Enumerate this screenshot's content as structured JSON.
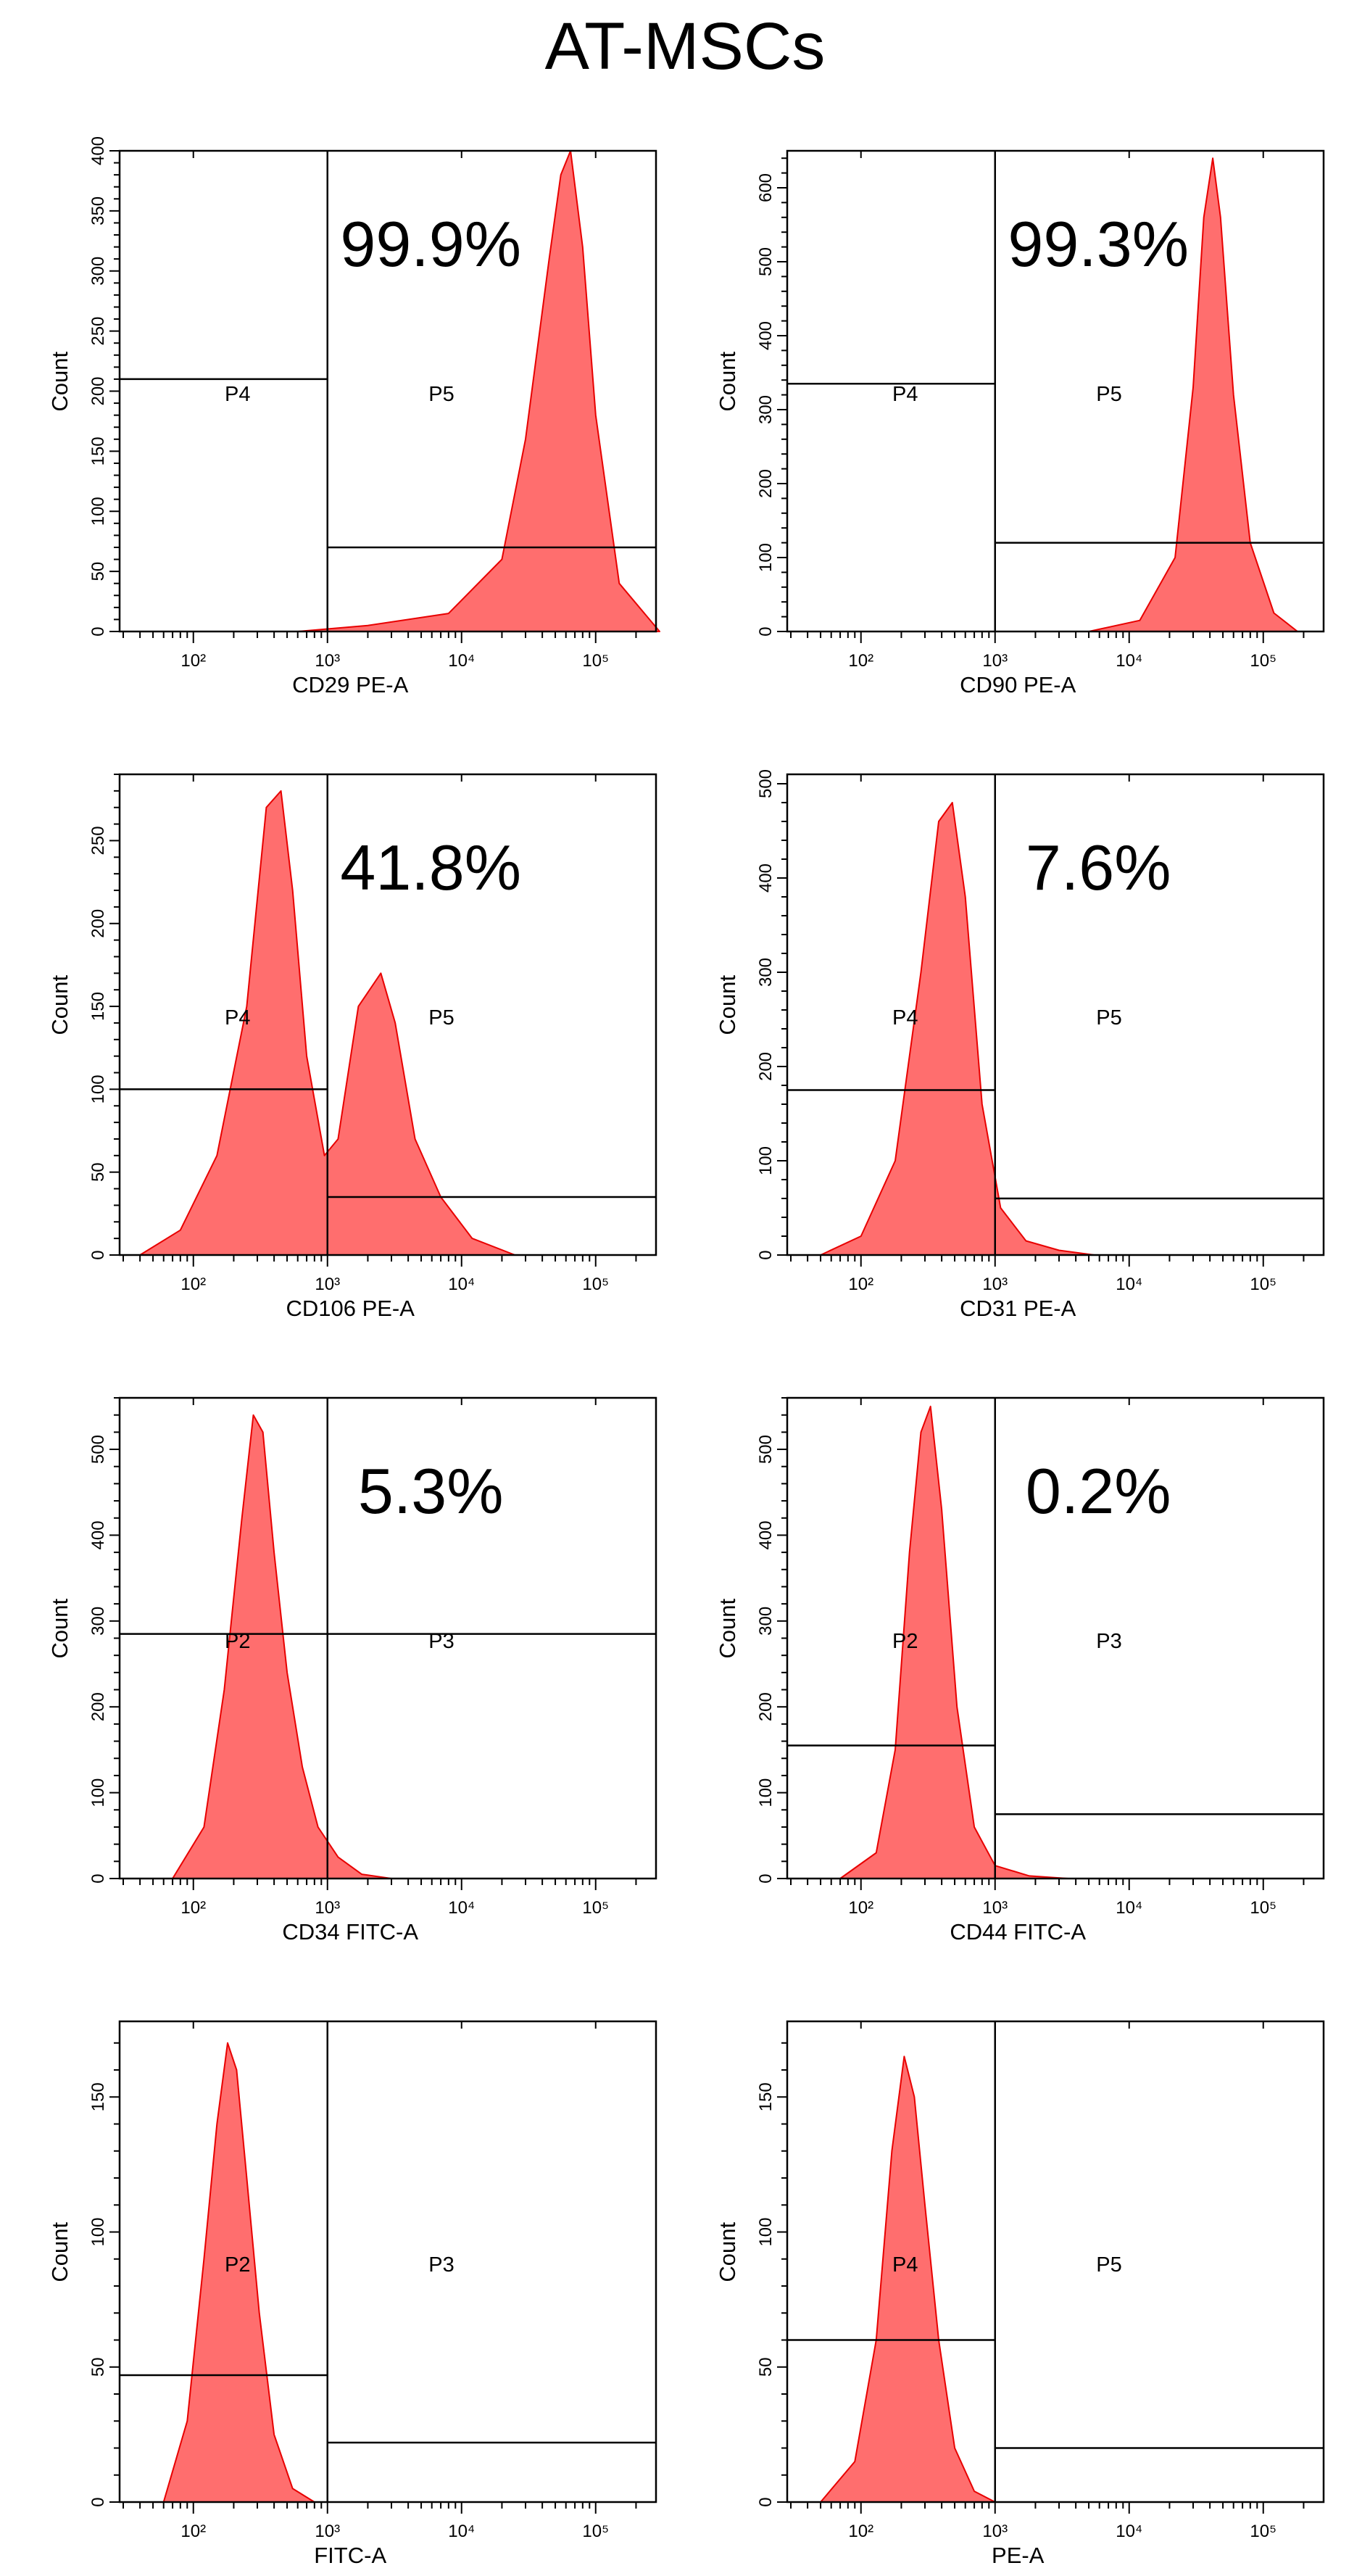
{
  "title": "AT-MSCs",
  "colors": {
    "histogram_fill": "#ff6e6e",
    "histogram_edge": "#e80000",
    "lines": "#000000"
  },
  "chart_data": [
    {
      "type": "area",
      "xlabel": "CD29 PE-A",
      "ylabel": "Count",
      "xscale": "log",
      "xticks": [
        "10²",
        "10³",
        "10⁴",
        "10⁵"
      ],
      "ylim": [
        0,
        400
      ],
      "yticks": [
        0,
        50,
        100,
        150,
        200,
        250,
        300,
        350,
        400
      ],
      "percent": "99.9%",
      "histogram": {
        "x": [
          600,
          2000,
          8000,
          20000,
          30000,
          45000,
          55000,
          65000,
          80000,
          100000,
          150000,
          300000
        ],
        "y": [
          0,
          5,
          15,
          60,
          160,
          310,
          380,
          400,
          320,
          180,
          40,
          0
        ]
      },
      "gates": [
        {
          "label": "P4",
          "x_range": [
            "min",
            1000
          ],
          "count": 210
        },
        {
          "label": "P5",
          "x_range": [
            1000,
            "max"
          ],
          "count": 70
        }
      ]
    },
    {
      "type": "area",
      "xlabel": "CD90 PE-A",
      "ylabel": "Count",
      "xscale": "log",
      "xticks": [
        "10²",
        "10³",
        "10⁴",
        "10⁵"
      ],
      "ylim": [
        0,
        650
      ],
      "yticks": [
        0,
        100,
        200,
        300,
        400,
        500,
        600
      ],
      "percent": "99.3%",
      "histogram": {
        "x": [
          5000,
          12000,
          22000,
          30000,
          36000,
          42000,
          48000,
          60000,
          80000,
          120000,
          180000
        ],
        "y": [
          0,
          15,
          100,
          330,
          560,
          640,
          560,
          320,
          120,
          25,
          0
        ]
      },
      "gates": [
        {
          "label": "P4",
          "x_range": [
            "min",
            1000
          ],
          "count": 335
        },
        {
          "label": "P5",
          "x_range": [
            1000,
            "max"
          ],
          "count": 120
        }
      ]
    },
    {
      "type": "area",
      "xlabel": "CD106 PE-A",
      "ylabel": "Count",
      "xscale": "log",
      "xticks": [
        "10²",
        "10³",
        "10⁴",
        "10⁵"
      ],
      "ylim": [
        0,
        290
      ],
      "yticks": [
        0,
        50,
        100,
        150,
        200,
        250
      ],
      "percent": "41.8%",
      "histogram": {
        "x": [
          40,
          80,
          150,
          250,
          350,
          450,
          550,
          700,
          950,
          1200,
          1700,
          2500,
          3200,
          4500,
          7000,
          12000,
          25000
        ],
        "y": [
          0,
          15,
          60,
          150,
          270,
          280,
          220,
          120,
          60,
          70,
          150,
          170,
          140,
          70,
          35,
          10,
          0
        ]
      },
      "gates": [
        {
          "label": "P4",
          "x_range": [
            "min",
            1000
          ],
          "count": 100
        },
        {
          "label": "P5",
          "x_range": [
            1000,
            "max"
          ],
          "count": 35
        }
      ]
    },
    {
      "type": "area",
      "xlabel": "CD31 PE-A",
      "ylabel": "Count",
      "xscale": "log",
      "xticks": [
        "10²",
        "10³",
        "10⁴",
        "10⁵"
      ],
      "ylim": [
        0,
        510
      ],
      "yticks": [
        0,
        100,
        200,
        300,
        400,
        500
      ],
      "percent": "7.6%",
      "histogram": {
        "x": [
          50,
          100,
          180,
          280,
          380,
          480,
          600,
          800,
          1100,
          1700,
          3000,
          5500
        ],
        "y": [
          0,
          20,
          100,
          300,
          460,
          480,
          380,
          160,
          50,
          15,
          5,
          0
        ]
      },
      "gates": [
        {
          "label": "P4",
          "x_range": [
            "min",
            1000
          ],
          "count": 175
        },
        {
          "label": "P5",
          "x_range": [
            1000,
            "max"
          ],
          "count": 60
        }
      ]
    },
    {
      "type": "area",
      "xlabel": "CD34 FITC-A",
      "ylabel": "Count",
      "xscale": "log",
      "xticks": [
        "10²",
        "10³",
        "10⁴",
        "10⁵"
      ],
      "ylim": [
        0,
        560
      ],
      "yticks": [
        0,
        100,
        200,
        300,
        400,
        500
      ],
      "percent": "5.3%",
      "histogram": {
        "x": [
          70,
          120,
          170,
          230,
          280,
          330,
          400,
          500,
          650,
          850,
          1200,
          1800,
          3000
        ],
        "y": [
          0,
          60,
          220,
          420,
          540,
          520,
          380,
          240,
          130,
          60,
          25,
          5,
          0
        ]
      },
      "gates": [
        {
          "label": "P2",
          "x_range": [
            "min",
            1000
          ],
          "count": 285
        },
        {
          "label": "P3",
          "x_range": [
            1000,
            "max"
          ],
          "count": 285
        }
      ]
    },
    {
      "type": "area",
      "xlabel": "CD44 FITC-A",
      "ylabel": "Count",
      "xscale": "log",
      "xticks": [
        "10²",
        "10³",
        "10⁴",
        "10⁵"
      ],
      "ylim": [
        0,
        560
      ],
      "yticks": [
        0,
        100,
        200,
        300,
        400,
        500
      ],
      "percent": "0.2%",
      "histogram": {
        "x": [
          70,
          130,
          180,
          230,
          280,
          330,
          400,
          520,
          700,
          1000,
          1800,
          3500
        ],
        "y": [
          0,
          30,
          150,
          380,
          520,
          550,
          430,
          200,
          60,
          15,
          3,
          0
        ]
      },
      "gates": [
        {
          "label": "P2",
          "x_range": [
            "min",
            1000
          ],
          "count": 155
        },
        {
          "label": "P3",
          "x_range": [
            1000,
            "max"
          ],
          "count": 75
        }
      ]
    },
    {
      "type": "area",
      "xlabel": "FITC-A",
      "ylabel": "Count",
      "xscale": "log",
      "xticks": [
        "10²",
        "10³",
        "10⁴",
        "10⁵"
      ],
      "ylim": [
        0,
        178
      ],
      "yticks": [
        0,
        50,
        100,
        150
      ],
      "percent": "",
      "histogram": {
        "x": [
          60,
          90,
          120,
          150,
          180,
          210,
          250,
          310,
          400,
          550,
          800
        ],
        "y": [
          0,
          30,
          90,
          140,
          170,
          160,
          120,
          70,
          25,
          5,
          0
        ]
      },
      "gates": [
        {
          "label": "P2",
          "x_range": [
            "min",
            1000
          ],
          "count": 47
        },
        {
          "label": "P3",
          "x_range": [
            1000,
            "max"
          ],
          "count": 22
        }
      ]
    },
    {
      "type": "area",
      "xlabel": "PE-A",
      "ylabel": "Count",
      "xscale": "log",
      "xticks": [
        "10²",
        "10³",
        "10⁴",
        "10⁵"
      ],
      "ylim": [
        0,
        178
      ],
      "yticks": [
        0,
        50,
        100,
        150
      ],
      "percent": "",
      "histogram": {
        "x": [
          50,
          90,
          130,
          170,
          210,
          250,
          300,
          380,
          500,
          700,
          1000
        ],
        "y": [
          0,
          15,
          60,
          130,
          165,
          150,
          110,
          60,
          20,
          4,
          0
        ]
      },
      "gates": [
        {
          "label": "P4",
          "x_range": [
            "min",
            1000
          ],
          "count": 60
        },
        {
          "label": "P5",
          "x_range": [
            1000,
            "max"
          ],
          "count": 20
        }
      ]
    }
  ]
}
